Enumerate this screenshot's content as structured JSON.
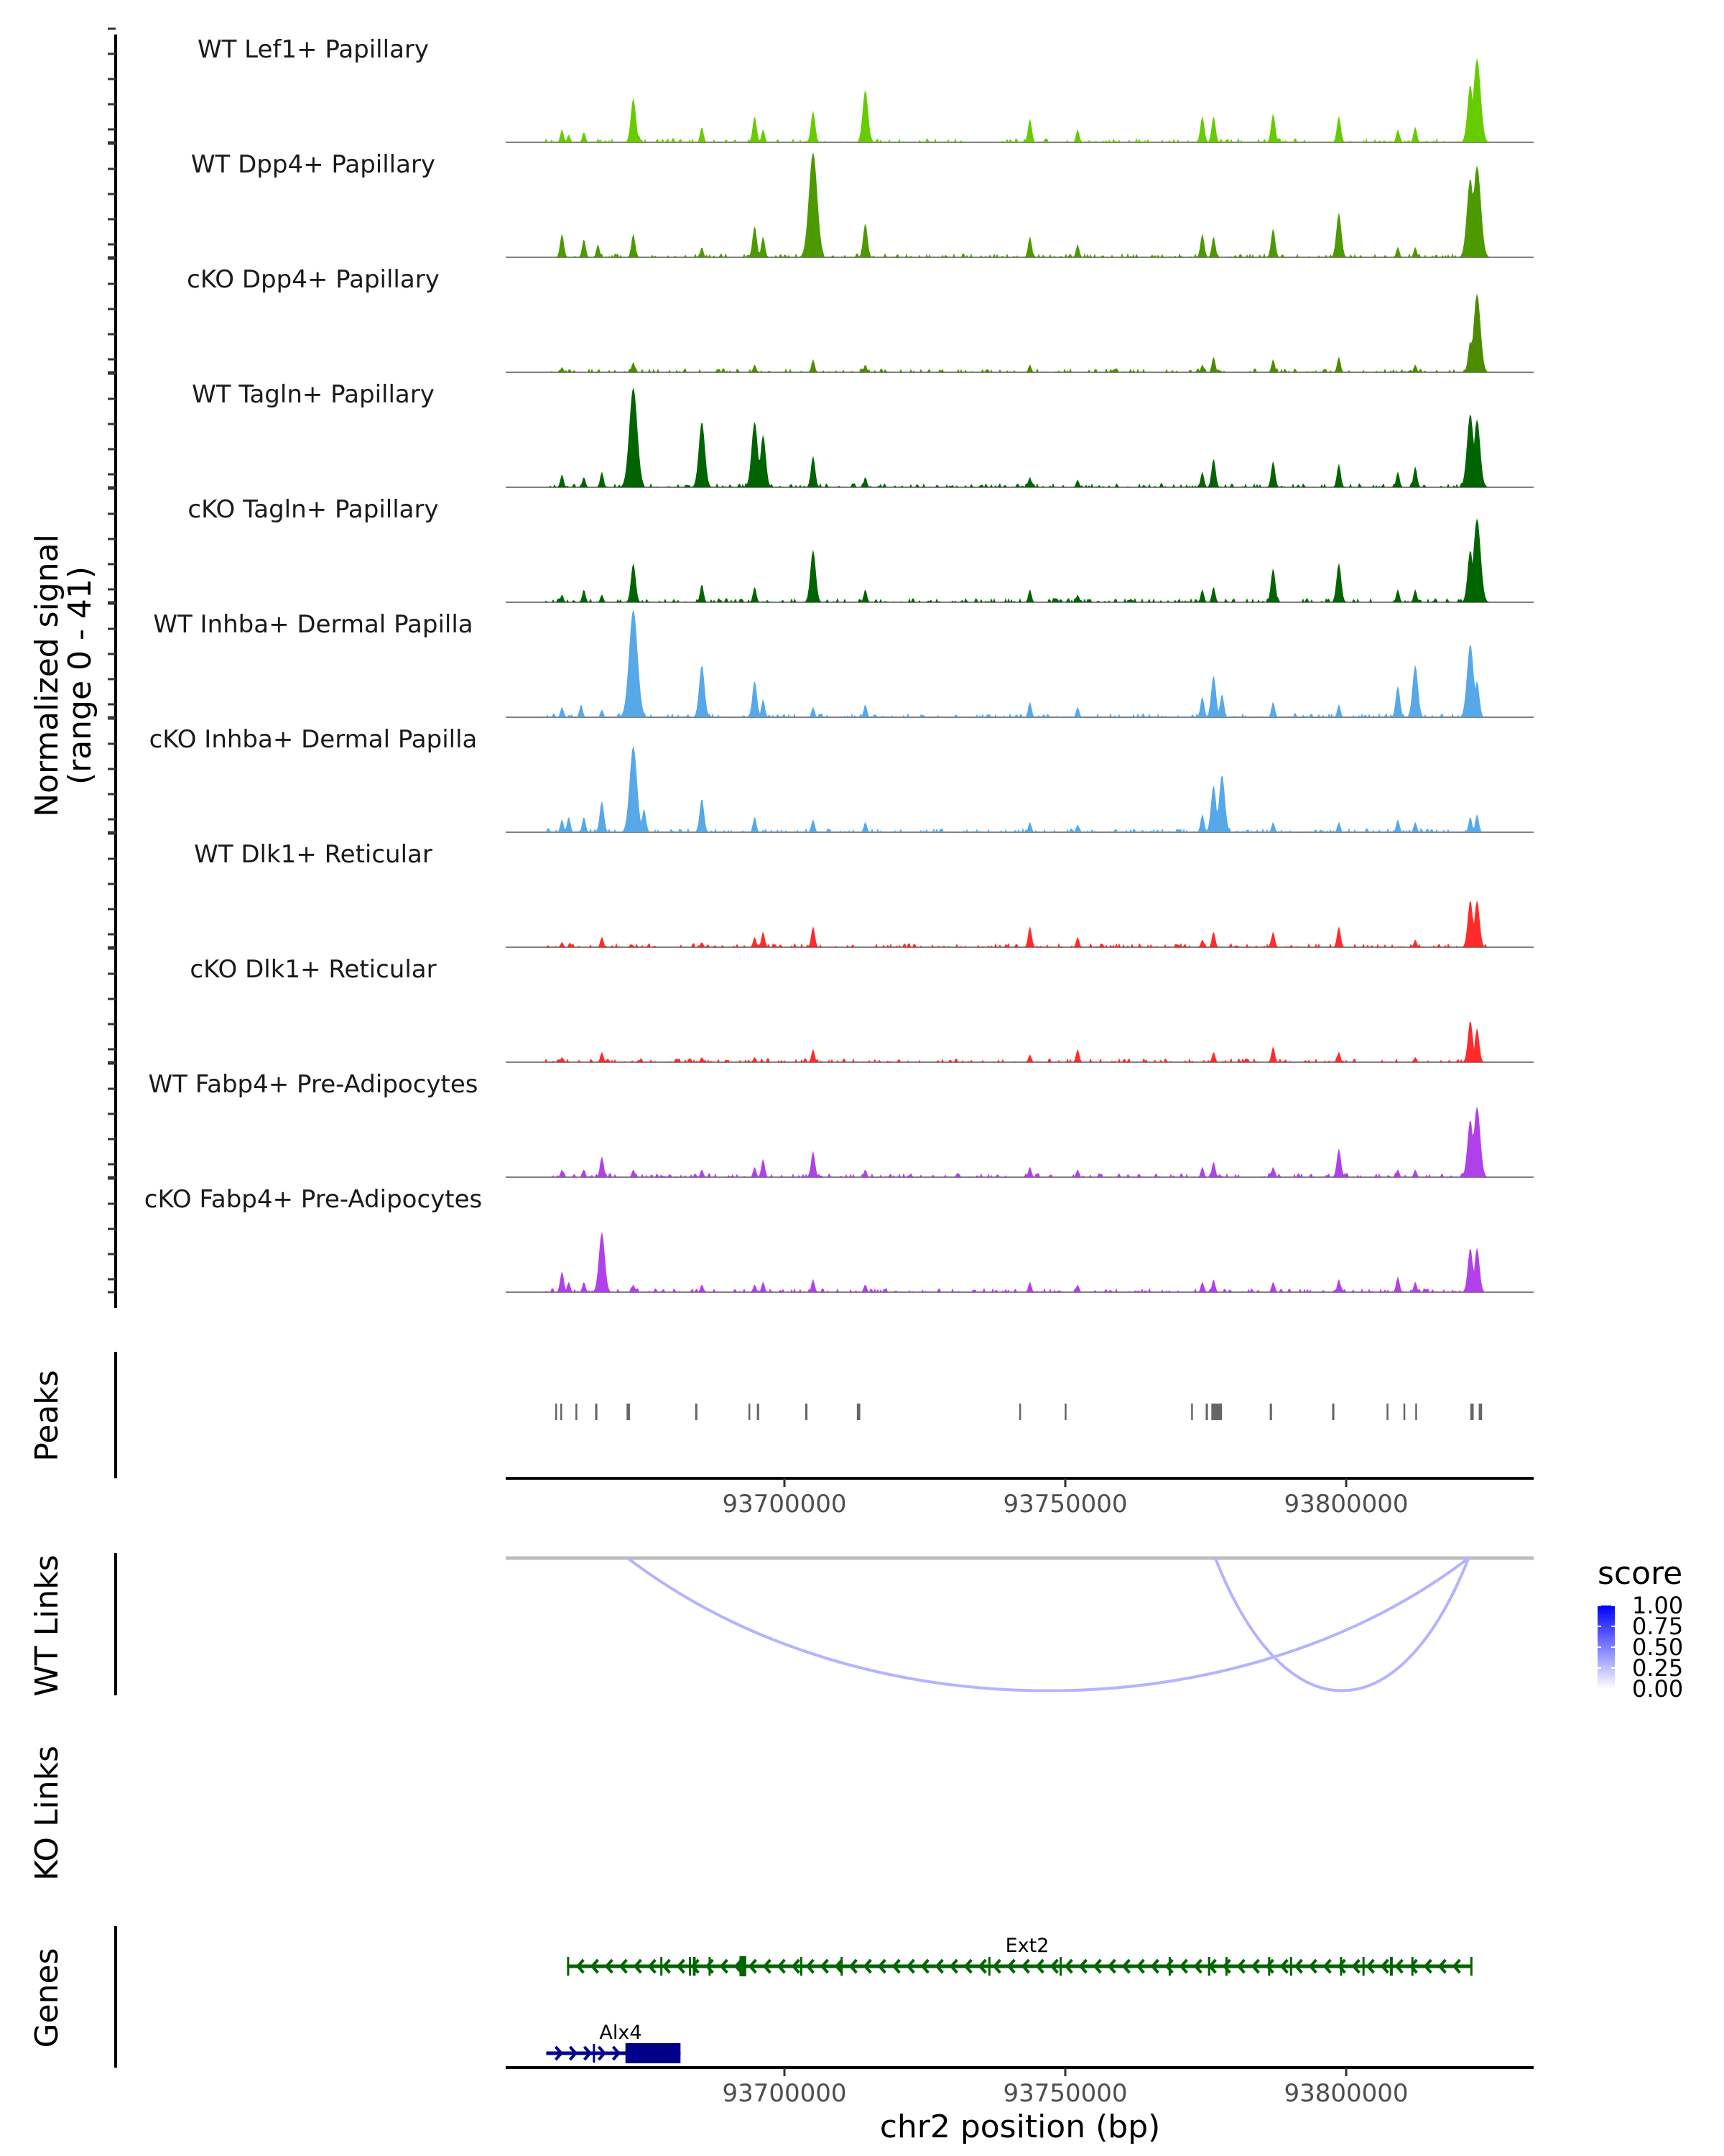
{
  "chart_data": {
    "type": "area",
    "title": "",
    "chromosome": "chr2",
    "xlabel": "chr2 position (bp)",
    "ylabel": "Normalized signal\n(range 0 - 41)",
    "ylabel_lines": [
      "Normalized signal",
      "(range 0 - 41)"
    ],
    "ylim": [
      0,
      41
    ],
    "region": [
      93650384,
      93833376
    ],
    "x_ticks": [
      93700000,
      93750000,
      93800000
    ],
    "x_tick_labels": [
      "93700000",
      "93750000",
      "93800000"
    ],
    "coverage_tracks": [
      {
        "name": "WT Lef1+ Papillary",
        "color": "#66CC00",
        "peaks": [
          [
            93660400,
            5
          ],
          [
            93661600,
            3
          ],
          [
            93664300,
            4
          ],
          [
            93673100,
            17
          ],
          [
            93674000,
            3
          ],
          [
            93685300,
            6
          ],
          [
            93694700,
            10
          ],
          [
            93696200,
            5
          ],
          [
            93705100,
            12
          ],
          [
            93714400,
            20
          ],
          [
            93743700,
            9
          ],
          [
            93752200,
            5
          ],
          [
            93774400,
            10
          ],
          [
            93776400,
            10
          ],
          [
            93787000,
            11
          ],
          [
            93798700,
            10
          ],
          [
            93809200,
            5
          ],
          [
            93812300,
            6
          ],
          [
            93822100,
            22
          ],
          [
            93823300,
            32
          ]
        ]
      },
      {
        "name": "WT Dpp4+ Papillary",
        "color": "#4D9900",
        "peaks": [
          [
            93660400,
            9
          ],
          [
            93664300,
            7
          ],
          [
            93666800,
            5
          ],
          [
            93673100,
            9
          ],
          [
            93685300,
            4
          ],
          [
            93694700,
            12
          ],
          [
            93696200,
            8
          ],
          [
            93705100,
            40
          ],
          [
            93714400,
            13
          ],
          [
            93743700,
            8
          ],
          [
            93752200,
            5
          ],
          [
            93774400,
            9
          ],
          [
            93776400,
            8
          ],
          [
            93787000,
            11
          ],
          [
            93798700,
            17
          ],
          [
            93809200,
            4
          ],
          [
            93812300,
            4
          ],
          [
            93822100,
            30
          ],
          [
            93823300,
            35
          ]
        ]
      },
      {
        "name": "cKO Dpp4+ Papillary",
        "color": "#4D8C00",
        "peaks": [
          [
            93660400,
            2
          ],
          [
            93673100,
            4
          ],
          [
            93694700,
            3
          ],
          [
            93705100,
            5
          ],
          [
            93714400,
            3
          ],
          [
            93743700,
            3
          ],
          [
            93774400,
            3
          ],
          [
            93776400,
            6
          ],
          [
            93787000,
            5
          ],
          [
            93798700,
            6
          ],
          [
            93812300,
            3
          ],
          [
            93822100,
            12
          ],
          [
            93823300,
            30
          ]
        ]
      },
      {
        "name": "WT Tagln+ Papillary",
        "color": "#006400",
        "peaks": [
          [
            93660400,
            5
          ],
          [
            93664300,
            4
          ],
          [
            93667500,
            6
          ],
          [
            93673100,
            38
          ],
          [
            93685300,
            25
          ],
          [
            93694700,
            25
          ],
          [
            93696200,
            20
          ],
          [
            93705100,
            12
          ],
          [
            93714400,
            4
          ],
          [
            93743700,
            4
          ],
          [
            93752200,
            3
          ],
          [
            93774400,
            6
          ],
          [
            93776400,
            11
          ],
          [
            93787000,
            10
          ],
          [
            93798700,
            9
          ],
          [
            93809200,
            6
          ],
          [
            93812300,
            8
          ],
          [
            93822100,
            28
          ],
          [
            93823300,
            26
          ]
        ]
      },
      {
        "name": "cKO Tagln+ Papillary",
        "color": "#006400",
        "peaks": [
          [
            93660400,
            3
          ],
          [
            93664300,
            5
          ],
          [
            93667500,
            3
          ],
          [
            93673100,
            15
          ],
          [
            93685300,
            7
          ],
          [
            93694700,
            6
          ],
          [
            93705100,
            20
          ],
          [
            93714400,
            5
          ],
          [
            93743700,
            5
          ],
          [
            93752200,
            3
          ],
          [
            93774400,
            5
          ],
          [
            93776400,
            6
          ],
          [
            93787000,
            13
          ],
          [
            93798700,
            15
          ],
          [
            93809200,
            5
          ],
          [
            93812300,
            5
          ],
          [
            93822100,
            20
          ],
          [
            93823300,
            32
          ]
        ]
      },
      {
        "name": "WT Inhba+ Dermal Papilla",
        "color": "#56A8E8",
        "peaks": [
          [
            93660400,
            4
          ],
          [
            93663800,
            5
          ],
          [
            93667500,
            3
          ],
          [
            93673100,
            41
          ],
          [
            93685300,
            20
          ],
          [
            93694700,
            14
          ],
          [
            93696200,
            7
          ],
          [
            93705100,
            4
          ],
          [
            93714400,
            5
          ],
          [
            93743700,
            6
          ],
          [
            93752200,
            4
          ],
          [
            93774400,
            8
          ],
          [
            93776400,
            16
          ],
          [
            93777900,
            9
          ],
          [
            93787000,
            6
          ],
          [
            93798700,
            5
          ],
          [
            93809200,
            12
          ],
          [
            93812300,
            20
          ],
          [
            93822100,
            28
          ],
          [
            93823300,
            14
          ]
        ]
      },
      {
        "name": "cKO Inhba+ Dermal Papilla",
        "color": "#56A8E8",
        "peaks": [
          [
            93660400,
            5
          ],
          [
            93661600,
            6
          ],
          [
            93664300,
            6
          ],
          [
            93667500,
            12
          ],
          [
            93673100,
            33
          ],
          [
            93675000,
            9
          ],
          [
            93685300,
            13
          ],
          [
            93694700,
            6
          ],
          [
            93705100,
            5
          ],
          [
            93714400,
            4
          ],
          [
            93743700,
            4
          ],
          [
            93752200,
            3
          ],
          [
            93774400,
            7
          ],
          [
            93776400,
            18
          ],
          [
            93777900,
            22
          ],
          [
            93787000,
            4
          ],
          [
            93798700,
            4
          ],
          [
            93809200,
            5
          ],
          [
            93812300,
            4
          ],
          [
            93822100,
            6
          ],
          [
            93823300,
            7
          ]
        ]
      },
      {
        "name": "WT Dlk1+ Reticular",
        "color": "#FF2A2A",
        "peaks": [
          [
            93660400,
            2
          ],
          [
            93667500,
            4
          ],
          [
            93685300,
            2
          ],
          [
            93694700,
            4
          ],
          [
            93696200,
            6
          ],
          [
            93705100,
            8
          ],
          [
            93743700,
            8
          ],
          [
            93752200,
            4
          ],
          [
            93774400,
            3
          ],
          [
            93776400,
            6
          ],
          [
            93787000,
            6
          ],
          [
            93798700,
            8
          ],
          [
            93812300,
            3
          ],
          [
            93822100,
            18
          ],
          [
            93823300,
            18
          ]
        ]
      },
      {
        "name": "cKO Dlk1+ Reticular",
        "color": "#FF2A2A",
        "peaks": [
          [
            93660400,
            2
          ],
          [
            93667500,
            4
          ],
          [
            93685300,
            2
          ],
          [
            93694700,
            2
          ],
          [
            93705100,
            5
          ],
          [
            93743700,
            3
          ],
          [
            93752200,
            5
          ],
          [
            93776400,
            4
          ],
          [
            93787000,
            6
          ],
          [
            93798700,
            4
          ],
          [
            93812300,
            2
          ],
          [
            93822100,
            16
          ],
          [
            93823300,
            13
          ]
        ]
      },
      {
        "name": "WT Fabp4+ Pre-Adipocytes",
        "color": "#B040E8",
        "peaks": [
          [
            93660400,
            3
          ],
          [
            93664300,
            3
          ],
          [
            93667500,
            8
          ],
          [
            93673100,
            3
          ],
          [
            93685300,
            3
          ],
          [
            93694700,
            4
          ],
          [
            93696200,
            7
          ],
          [
            93705100,
            10
          ],
          [
            93714400,
            3
          ],
          [
            93743700,
            4
          ],
          [
            93752200,
            3
          ],
          [
            93774400,
            4
          ],
          [
            93776400,
            6
          ],
          [
            93787000,
            4
          ],
          [
            93798700,
            11
          ],
          [
            93809200,
            3
          ],
          [
            93812300,
            3
          ],
          [
            93822100,
            22
          ],
          [
            93823300,
            27
          ]
        ]
      },
      {
        "name": "cKO Fabp4+ Pre-Adipocytes",
        "color": "#B040E8",
        "peaks": [
          [
            93660400,
            8
          ],
          [
            93661600,
            4
          ],
          [
            93664300,
            4
          ],
          [
            93667500,
            23
          ],
          [
            93673100,
            3
          ],
          [
            93685300,
            3
          ],
          [
            93694700,
            3
          ],
          [
            93696200,
            4
          ],
          [
            93705100,
            5
          ],
          [
            93714400,
            3
          ],
          [
            93743700,
            4
          ],
          [
            93752200,
            3
          ],
          [
            93774400,
            4
          ],
          [
            93776400,
            5
          ],
          [
            93787000,
            4
          ],
          [
            93798700,
            5
          ],
          [
            93809200,
            6
          ],
          [
            93812300,
            4
          ],
          [
            93822100,
            17
          ],
          [
            93823300,
            17
          ]
        ]
      }
    ],
    "peaks_track": {
      "label": "Peaks",
      "color": "#666666",
      "regions": [
        [
          93659200,
          93659500
        ],
        [
          93660100,
          93660300
        ],
        [
          93662800,
          93663100
        ],
        [
          93666300,
          93666700
        ],
        [
          93671900,
          93672500
        ],
        [
          93684100,
          93684500
        ],
        [
          93693600,
          93693900
        ],
        [
          93695100,
          93695500
        ],
        [
          93703700,
          93704100
        ],
        [
          93712900,
          93713500
        ],
        [
          93741800,
          93742100
        ],
        [
          93749900,
          93750100
        ],
        [
          93772400,
          93772600
        ],
        [
          93775000,
          93775400
        ],
        [
          93776000,
          93777900
        ],
        [
          93786400,
          93786800
        ],
        [
          93797500,
          93797900
        ],
        [
          93807200,
          93807400
        ],
        [
          93810200,
          93810500
        ],
        [
          93812300,
          93812500
        ],
        [
          93822100,
          93822700
        ],
        [
          93823600,
          93824200
        ]
      ]
    },
    "links": {
      "WT": {
        "label": "WT Links",
        "arcs": [
          {
            "start": 93672100,
            "end": 93821800,
            "score": 0.25
          },
          {
            "start": 93776700,
            "end": 93821800,
            "score": 0.25
          }
        ]
      },
      "KO": {
        "label": "KO Links",
        "arcs": []
      }
    },
    "legend": {
      "title": "score",
      "labels": [
        "1.00",
        "0.75",
        "0.50",
        "0.25",
        "0.00"
      ],
      "values": [
        1.0,
        0.75,
        0.5,
        0.25,
        0.0
      ],
      "low_color": "#FFFFFF",
      "high_color": "#0000FF",
      "placement": "right"
    },
    "genes_track": {
      "label": "Genes",
      "genes": [
        {
          "name": "Ext2",
          "strand": "-",
          "start": 93661300,
          "end": 93822400,
          "color": "#006400",
          "exons": [
            [
              93661300,
              93661600
            ],
            [
              93677900,
              93678200
            ],
            [
              93683000,
              93683300
            ],
            [
              93683700,
              93684200
            ],
            [
              93686500,
              93686700
            ],
            [
              93692000,
              93693200
            ],
            [
              93702800,
              93703000
            ],
            [
              93710000,
              93710200
            ],
            [
              93736300,
              93736500
            ],
            [
              93749000,
              93749200
            ],
            [
              93768400,
              93768600
            ],
            [
              93775400,
              93775800
            ],
            [
              93778500,
              93778700
            ],
            [
              93786100,
              93786300
            ],
            [
              93790000,
              93790200
            ],
            [
              93798900,
              93799100
            ],
            [
              93802900,
              93803100
            ],
            [
              93807800,
              93808300
            ],
            [
              93811600,
              93811800
            ],
            [
              93822100,
              93822400
            ]
          ]
        },
        {
          "name": "Alx4",
          "strand": "+",
          "start": 93657600,
          "end": 93681500,
          "color": "#00008B",
          "exons": [
            [
              93665900,
              93666100
            ],
            [
              93671700,
              93681500
            ]
          ]
        }
      ]
    },
    "section_labels": {
      "peaks": "Peaks",
      "wt_links": "WT Links",
      "ko_links": "KO Links",
      "genes": "Genes"
    }
  }
}
